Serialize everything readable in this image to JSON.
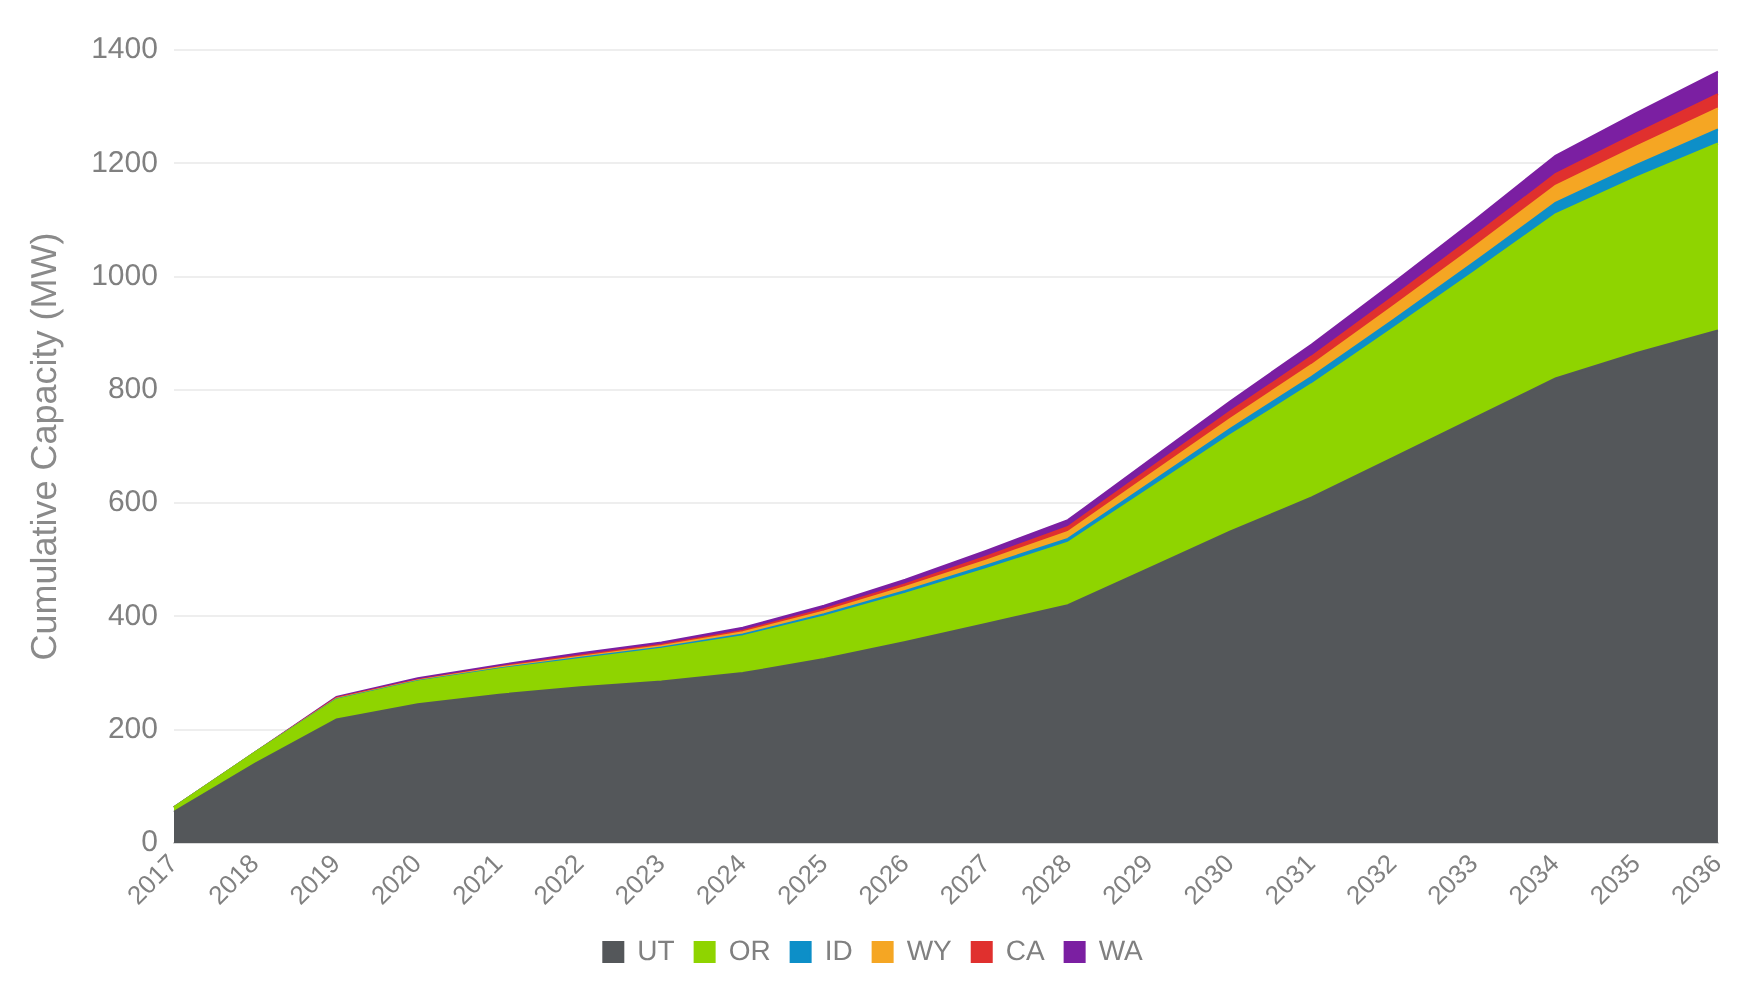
{
  "chart_data": {
    "type": "area",
    "stacked": true,
    "ylabel": "Cumulative Capacity (MW)",
    "categories": [
      "2017",
      "2018",
      "2019",
      "2020",
      "2021",
      "2022",
      "2023",
      "2024",
      "2025",
      "2026",
      "2027",
      "2028",
      "2029",
      "2030",
      "2031",
      "2032",
      "2033",
      "2034",
      "2035",
      "2036"
    ],
    "series": [
      {
        "name": "UT",
        "color": "#54575a",
        "values": [
          55,
          140,
          218,
          245,
          262,
          275,
          285,
          300,
          325,
          355,
          387,
          420,
          485,
          550,
          610,
          680,
          750,
          820,
          865,
          905
        ]
      },
      {
        "name": "OR",
        "color": "#8fd400",
        "values": [
          8,
          20,
          35,
          40,
          45,
          50,
          58,
          65,
          75,
          85,
          97,
          110,
          140,
          170,
          200,
          228,
          258,
          290,
          310,
          330
        ]
      },
      {
        "name": "ID",
        "color": "#0d8fc8",
        "values": [
          0,
          0,
          1,
          1,
          1,
          2,
          2,
          3,
          4,
          5,
          6,
          7,
          9,
          11,
          13,
          15,
          17,
          20,
          22,
          25
        ]
      },
      {
        "name": "WY",
        "color": "#f5a623",
        "values": [
          0,
          0,
          1,
          1,
          2,
          2,
          3,
          4,
          5,
          7,
          9,
          12,
          15,
          18,
          21,
          24,
          27,
          30,
          33,
          37
        ]
      },
      {
        "name": "CA",
        "color": "#e0302e",
        "values": [
          0,
          0,
          1,
          1,
          1,
          2,
          2,
          3,
          4,
          5,
          7,
          9,
          11,
          13,
          15,
          17,
          19,
          21,
          23,
          25
        ]
      },
      {
        "name": "WA",
        "color": "#7b1fa2",
        "values": [
          0,
          0,
          2,
          3,
          3,
          4,
          4,
          5,
          6,
          8,
          10,
          12,
          15,
          18,
          21,
          24,
          28,
          32,
          36,
          40
        ]
      }
    ],
    "ylim": [
      0,
      1400
    ],
    "yticks": [
      0,
      200,
      400,
      600,
      800,
      1000,
      1200,
      1400
    ],
    "grid": "y",
    "legend": "bottom"
  }
}
